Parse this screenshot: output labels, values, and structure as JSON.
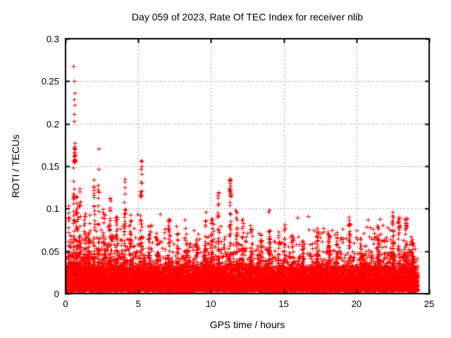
{
  "chart_data": {
    "type": "scatter",
    "title": "Day 059 of 2023, Rate Of TEC Index for receiver nlib",
    "xlabel": "GPS time / hours",
    "ylabel": "ROTI / TECUs",
    "xlim": [
      0,
      25
    ],
    "ylim": [
      0,
      0.3
    ],
    "xticks": [
      0,
      5,
      10,
      15,
      20,
      25
    ],
    "xtick_labels": [
      "0",
      "5",
      "10",
      "15",
      "20",
      "25"
    ],
    "yticks": [
      0,
      0.05,
      0.1,
      0.15,
      0.2,
      0.25,
      0.3
    ],
    "ytick_labels": [
      "0",
      "0.05",
      "0.1",
      "0.15",
      "0.2",
      "0.25",
      "0.3"
    ],
    "grid": true,
    "grid_style": "dotted",
    "legend": "none",
    "marker": {
      "glyph": "plus",
      "size": 7,
      "name": "plus-marker"
    },
    "colors": {
      "marker": "#ff0000",
      "grid": "#a0a0a0",
      "axis": "#000000",
      "text": "#000000",
      "background": "#ffffff"
    },
    "generator": {
      "seed": 59,
      "data_end_hour": 24.2,
      "n_baseline": 9000,
      "n_bottom": 3500,
      "v_min": 0.003,
      "exp_mean": 0.013,
      "tail_cap": 0.095,
      "bottom_band": 0.03,
      "spike_vmin": 0.035,
      "spike_pow": 1.4,
      "envelope_hours": [
        0,
        0.5,
        1,
        2,
        3,
        4,
        5,
        6,
        7,
        8,
        9,
        10,
        11,
        12,
        13,
        14,
        15,
        16,
        17,
        18,
        19,
        20,
        21,
        22,
        23,
        24.2
      ],
      "envelope_mult": [
        1.1,
        1.45,
        1.35,
        1.3,
        1.25,
        1.2,
        1.2,
        1.0,
        0.95,
        0.95,
        1.0,
        1.2,
        1.25,
        1.05,
        0.95,
        0.9,
        0.9,
        0.95,
        1.0,
        1.0,
        1.0,
        1.05,
        1.2,
        1.3,
        1.25,
        1.1
      ]
    },
    "spikes": [
      [
        0.2,
        0.105,
        0.05,
        20
      ],
      [
        0.55,
        0.14,
        0.04,
        30
      ],
      [
        0.62,
        0.178,
        0.05,
        22,
        0.155
      ],
      [
        0.75,
        0.12,
        0.06,
        25
      ],
      [
        0.97,
        0.13,
        0.05,
        25
      ],
      [
        1.3,
        0.095,
        0.08,
        25
      ],
      [
        1.6,
        0.08,
        0.08,
        20
      ],
      [
        1.95,
        0.135,
        0.08,
        35
      ],
      [
        2.27,
        0.148,
        0.05,
        24
      ],
      [
        2.6,
        0.102,
        0.08,
        25
      ],
      [
        3.05,
        0.115,
        0.07,
        28
      ],
      [
        3.5,
        0.092,
        0.09,
        25
      ],
      [
        4.05,
        0.132,
        0.07,
        30
      ],
      [
        4.45,
        0.102,
        0.07,
        22
      ],
      [
        5.2,
        0.157,
        0.06,
        32
      ],
      [
        5.75,
        0.082,
        0.09,
        22
      ],
      [
        6.3,
        0.075,
        0.09,
        18
      ],
      [
        7.1,
        0.088,
        0.09,
        26
      ],
      [
        7.7,
        0.072,
        0.08,
        18
      ],
      [
        8.3,
        0.078,
        0.09,
        22
      ],
      [
        9.0,
        0.067,
        0.09,
        18
      ],
      [
        9.6,
        0.096,
        0.07,
        22
      ],
      [
        10.05,
        0.09,
        0.05,
        18
      ],
      [
        10.5,
        0.12,
        0.06,
        26
      ],
      [
        11.3,
        0.136,
        0.06,
        34
      ],
      [
        11.75,
        0.102,
        0.07,
        22
      ],
      [
        12.15,
        0.092,
        0.07,
        22
      ],
      [
        12.75,
        0.08,
        0.09,
        22
      ],
      [
        13.4,
        0.07,
        0.09,
        18
      ],
      [
        14.0,
        0.098,
        0.06,
        26
      ],
      [
        14.65,
        0.077,
        0.07,
        18
      ],
      [
        15.05,
        0.083,
        0.05,
        18
      ],
      [
        15.6,
        0.072,
        0.09,
        18
      ],
      [
        16.3,
        0.067,
        0.09,
        18
      ],
      [
        17.3,
        0.078,
        0.12,
        28
      ],
      [
        18.1,
        0.074,
        0.1,
        24
      ],
      [
        18.65,
        0.082,
        0.05,
        14
      ],
      [
        19.5,
        0.089,
        0.07,
        22
      ],
      [
        20.3,
        0.064,
        0.09,
        18
      ],
      [
        21.5,
        0.08,
        0.13,
        32
      ],
      [
        22.5,
        0.095,
        0.07,
        28
      ],
      [
        22.9,
        0.091,
        0.06,
        22
      ],
      [
        23.4,
        0.089,
        0.06,
        26
      ],
      [
        23.8,
        0.072,
        0.06,
        18
      ]
    ],
    "top_points": [
      [
        0.55,
        0.268
      ],
      [
        0.6,
        0.25
      ],
      [
        0.62,
        0.236
      ],
      [
        0.6,
        0.229
      ],
      [
        0.63,
        0.222
      ],
      [
        0.57,
        0.211
      ],
      [
        0.58,
        0.203
      ],
      [
        0.52,
        0.156
      ],
      [
        0.54,
        0.148
      ],
      [
        2.27,
        0.171
      ],
      [
        4.05,
        0.135
      ],
      [
        5.18,
        0.157
      ],
      [
        5.23,
        0.15
      ],
      [
        10.52,
        0.119
      ],
      [
        11.27,
        0.135
      ],
      [
        11.31,
        0.133
      ],
      [
        11.29,
        0.13
      ],
      [
        11.33,
        0.127
      ],
      [
        14.0,
        0.099
      ],
      [
        19.5,
        0.09
      ],
      [
        22.5,
        0.096
      ],
      [
        23.4,
        0.089
      ]
    ]
  }
}
